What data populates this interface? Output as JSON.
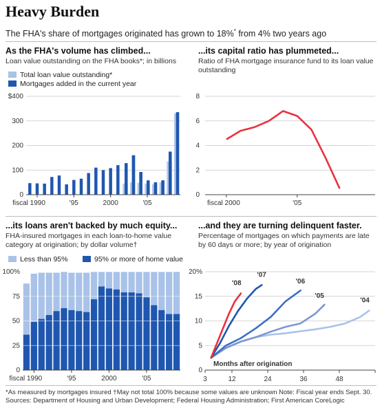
{
  "header": {
    "title": "Heavy Burden",
    "subtitle": "The FHA's share of mortgages originated has grown to 18%",
    "subtitle_sup": "*",
    "subtitle_tail": " from 4% two years ago"
  },
  "panels": {
    "p1": {
      "title": "As the FHA's volume has climbed...",
      "desc": "Loan value outstanding on the FHA books*; in billions"
    },
    "p2": {
      "title": "...its capital ratio has plummeted...",
      "desc": "Ratio of FHA mortgage insurance fund to its loan value outstanding"
    },
    "p3": {
      "title": "...its loans aren't backed by much equity...",
      "desc": "FHA-insured mortgages in each loan-to-home value category at origination; by dollar volume†"
    },
    "p4": {
      "title": "...and they are turning delinquent faster.",
      "desc": "Percentage of mortgages on which payments are late by 60 days or more; by year of origination"
    }
  },
  "footer": {
    "line1": "*As measured by mortgages insured    †May not total 100% because some values are unknown     Note: Fiscal year ends Sept. 30.",
    "line2": "Sources: Department of Housing and Urban Development; Federal Housing Administration; First American CoreLogic"
  },
  "colors": {
    "light": "#a9c2e8",
    "dark": "#1f57b0",
    "red": "#e8323c",
    "grid": "#c8c8c8"
  },
  "chart_data": [
    {
      "type": "bar",
      "title": "As the FHA's volume has climbed...",
      "ylabel": "Loan value outstanding on the FHA books; in billions",
      "ylim": [
        0,
        400
      ],
      "yticks": [
        "0",
        "100",
        "200",
        "300",
        "$400"
      ],
      "x": [
        1989,
        1990,
        1991,
        1992,
        1993,
        1994,
        1995,
        1996,
        1997,
        1998,
        1999,
        2000,
        2001,
        2002,
        2003,
        2004,
        2005,
        2006,
        2007,
        2008,
        2009
      ],
      "xtick_labels": [
        {
          "x": 1990,
          "label": "fiscal 1990"
        },
        {
          "x": 1995,
          "label": "'95"
        },
        {
          "x": 2000,
          "label": "2000"
        },
        {
          "x": 2005,
          "label": "'05"
        }
      ],
      "legend_position": "top-left",
      "series": [
        {
          "name": "Total loan value outstanding*",
          "color": "#a9c2e8",
          "values": [
            null,
            null,
            null,
            null,
            null,
            null,
            null,
            null,
            null,
            null,
            null,
            null,
            null,
            45,
            50,
            48,
            45,
            42,
            50,
            135,
            330
          ]
        },
        {
          "name": "Mortgages added in the current year",
          "color": "#1f57b0",
          "values": [
            47,
            46,
            45,
            72,
            78,
            42,
            60,
            65,
            88,
            110,
            100,
            108,
            120,
            128,
            160,
            92,
            58,
            50,
            58,
            175,
            335
          ]
        }
      ]
    },
    {
      "type": "line",
      "title": "...its capital ratio has plummeted...",
      "ylim": [
        0,
        8
      ],
      "yticks": [
        "0",
        "2",
        "4",
        "6",
        "8"
      ],
      "xtick_labels": [
        {
          "x": 2000,
          "label": "fiscal 2000"
        },
        {
          "x": 2005,
          "label": "'05"
        }
      ],
      "series": [
        {
          "name": "",
          "color": "#e8323c",
          "x": [
            2000,
            2001,
            2002,
            2003,
            2004,
            2005,
            2006,
            2007,
            2008
          ],
          "values": [
            4.5,
            5.2,
            5.5,
            6.0,
            6.8,
            6.4,
            5.3,
            3.0,
            0.5
          ]
        }
      ]
    },
    {
      "type": "bar",
      "title": "...its loans aren't backed by much equity...",
      "ylim": [
        0,
        100
      ],
      "yticks": [
        "0",
        "25",
        "50",
        "75",
        "100%"
      ],
      "x": [
        1989,
        1990,
        1991,
        1992,
        1993,
        1994,
        1995,
        1996,
        1997,
        1998,
        1999,
        2000,
        2001,
        2002,
        2003,
        2004,
        2005,
        2006,
        2007,
        2008,
        2009
      ],
      "xtick_labels": [
        {
          "x": 1990,
          "label": "fiscal 1990"
        },
        {
          "x": 1995,
          "label": "'95"
        },
        {
          "x": 2000,
          "label": "2000"
        },
        {
          "x": 2005,
          "label": "'05"
        }
      ],
      "legend_position": "top-left",
      "series": [
        {
          "name": "95% or more of home value",
          "color": "#1f57b0",
          "values": [
            36,
            49,
            52,
            56,
            60,
            63,
            61,
            60,
            59,
            72,
            85,
            83,
            82,
            79,
            79,
            78,
            74,
            66,
            61,
            57,
            57
          ]
        },
        {
          "name": "Less than 95%",
          "color": "#a9c2e8",
          "values": [
            52,
            49,
            47,
            43,
            39,
            37,
            38,
            39,
            40,
            28,
            15,
            17,
            18,
            21,
            21,
            22,
            26,
            34,
            39,
            43,
            43
          ]
        }
      ]
    },
    {
      "type": "line",
      "title": "...and they are turning delinquent faster.",
      "xlabel": "Months after origination",
      "ylim": [
        0,
        20
      ],
      "xlim": [
        3,
        60
      ],
      "yticks": [
        "0",
        "5",
        "10",
        "15",
        "20%"
      ],
      "xticks": [
        "3",
        "12",
        "24",
        "36",
        "48"
      ],
      "series": [
        {
          "name": "'08",
          "color": "#e8323c",
          "x": [
            5,
            7,
            9,
            11,
            13,
            15
          ],
          "values": [
            2.5,
            5.5,
            8.5,
            11.5,
            14,
            15.6
          ]
        },
        {
          "name": "'07",
          "color": "#1f57b0",
          "x": [
            5,
            8,
            11,
            14,
            17,
            20,
            22
          ],
          "values": [
            2.5,
            5.5,
            9,
            12,
            14.5,
            16.5,
            17.3
          ]
        },
        {
          "name": "'06",
          "color": "#3f6fc4",
          "x": [
            5,
            10,
            15,
            20,
            25,
            30,
            35
          ],
          "values": [
            2.5,
            5,
            6.5,
            8.5,
            10.8,
            14,
            16.2
          ]
        },
        {
          "name": "'05",
          "color": "#7898d4",
          "x": [
            5,
            10,
            15,
            20,
            25,
            30,
            35,
            40,
            43
          ],
          "values": [
            2.5,
            4.5,
            5.8,
            6.7,
            7.8,
            8.8,
            9.5,
            11.5,
            13.3
          ]
        },
        {
          "name": "'04",
          "color": "#a9c2e8",
          "x": [
            5,
            10,
            15,
            20,
            25,
            30,
            35,
            40,
            45,
            50,
            55,
            58
          ],
          "values": [
            2.5,
            4.5,
            5.8,
            6.7,
            7.2,
            7.5,
            7.9,
            8.3,
            8.8,
            9.5,
            10.8,
            12.1
          ]
        }
      ]
    }
  ]
}
